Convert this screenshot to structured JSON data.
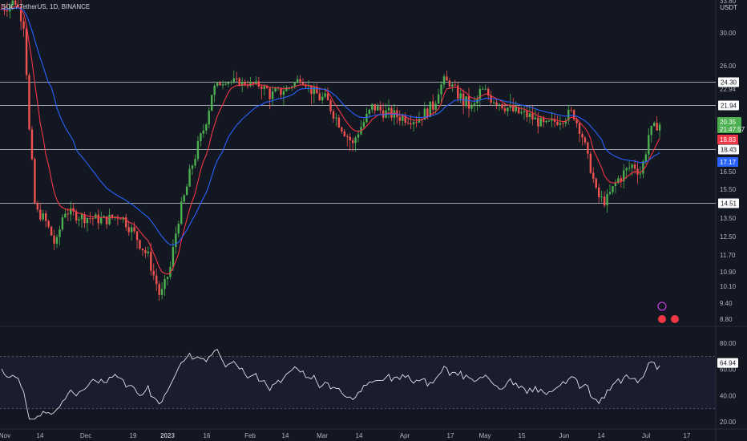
{
  "header": {
    "symbol_line": "SOL / TetherUS, 1D, BINANCE",
    "currency": "USDT"
  },
  "colors": {
    "up": "#26a69a",
    "up_bright": "#4caf50",
    "down": "#ef5350",
    "ema_fast": "#f23645",
    "ema_slow": "#2962ff",
    "rsi": "#e0e3eb",
    "bg": "#131722"
  },
  "price_axis": {
    "ticks": [
      "30.00",
      "26.00",
      "22.94",
      "20.35",
      "18.43",
      "16.50",
      "15.50",
      "13.50",
      "12.50",
      "11.70",
      "10.90",
      "10.10",
      "9.40",
      "8.80"
    ],
    "top_label": "33.80"
  },
  "levels": [
    {
      "label": "24.30"
    },
    {
      "label": "21.94"
    },
    {
      "label": "18.43"
    },
    {
      "label": "14.51"
    }
  ],
  "price_tags": {
    "last": {
      "value": "20.35",
      "countdown": "21:47:57",
      "color": "#4caf50"
    },
    "ema_fast": {
      "value": "18.83",
      "color": "#f23645"
    },
    "ema_slow": {
      "value": "17.17",
      "color": "#2962ff"
    }
  },
  "rsi_axis": {
    "ticks": [
      "80.00",
      "60.00",
      "40.00",
      "20.00"
    ],
    "value_tag": "64.94"
  },
  "time_axis": [
    "Nov",
    "14",
    "Dec",
    "19",
    "2023",
    "16",
    "Feb",
    "14",
    "Mar",
    "14",
    "Apr",
    "17",
    "May",
    "15",
    "Jun",
    "14",
    "Jul",
    "17"
  ],
  "chart_data": {
    "type": "candlestick",
    "series_note": "",
    "levels": [
      24.3,
      21.94,
      18.43,
      14.51
    ],
    "ema_fast_last": 18.83,
    "ema_slow_last": 17.17,
    "rsi_last": 64.94,
    "rsi_band": [
      30,
      70
    ],
    "last_close": 20.35
  }
}
